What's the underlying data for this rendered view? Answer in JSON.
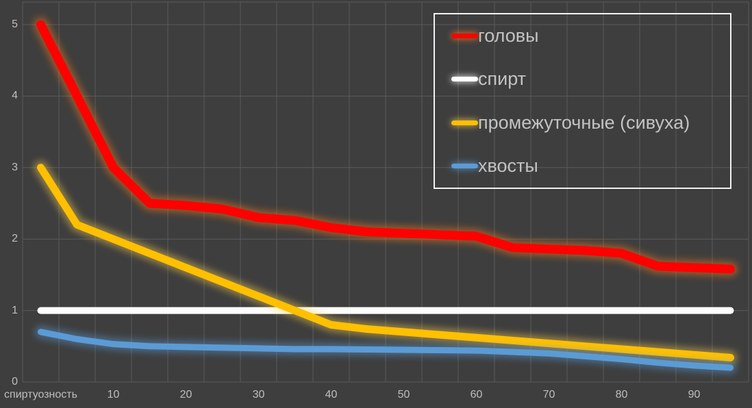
{
  "chart_data": {
    "type": "line",
    "title": "",
    "grid": true,
    "legend_position": "top-right",
    "x_axis": {
      "label": "спиртуозность",
      "categories": [
        0,
        5,
        10,
        15,
        20,
        25,
        30,
        35,
        40,
        45,
        50,
        55,
        60,
        65,
        70,
        75,
        80,
        85,
        90,
        95
      ],
      "tick_labels": [
        "спиртуозность",
        "10",
        "20",
        "30",
        "40",
        "50",
        "60",
        "70",
        "80",
        "90"
      ],
      "tick_every": 2
    },
    "y_axis": {
      "min": 0,
      "max": 5,
      "tick_labels": [
        "0",
        "1",
        "2",
        "3",
        "4",
        "5"
      ]
    },
    "series": [
      {
        "name": "головы",
        "color": "#ff0000",
        "glow_color": "#ff7b1f",
        "line_width": 13,
        "values": [
          5,
          4,
          3,
          2.5,
          2.47,
          2.42,
          2.3,
          2.26,
          2.16,
          2.1,
          2.08,
          2.06,
          2.04,
          1.88,
          1.86,
          1.84,
          1.8,
          1.62,
          1.6,
          1.58
        ]
      },
      {
        "name": "спирт",
        "color": "#ffffff",
        "glow_color": "#ffffff",
        "line_width": 10,
        "values": [
          1,
          1,
          1,
          1,
          1,
          1,
          1,
          1,
          1,
          1,
          1,
          1,
          1,
          1,
          1,
          1,
          1,
          1,
          1,
          1
        ]
      },
      {
        "name": "промежуточные (сивуха)",
        "color": "#ffc000",
        "glow_color": "#ffd24d",
        "line_width": 11,
        "values": [
          3,
          2.2,
          2,
          1.8,
          1.6,
          1.4,
          1.2,
          1,
          0.8,
          0.74,
          0.7,
          0.66,
          0.62,
          0.58,
          0.54,
          0.5,
          0.46,
          0.42,
          0.38,
          0.34
        ]
      },
      {
        "name": "хвосты",
        "color": "#5b9bd5",
        "glow_color": "#5b9bd5",
        "line_width": 9,
        "values": [
          0.7,
          0.6,
          0.53,
          0.5,
          0.49,
          0.48,
          0.47,
          0.46,
          0.46,
          0.455,
          0.45,
          0.445,
          0.44,
          0.42,
          0.4,
          0.36,
          0.32,
          0.27,
          0.23,
          0.2
        ]
      }
    ]
  },
  "colors": {
    "background": "#3e3e3e",
    "gridline": "#5b5b5b",
    "axis_text": "#bfbfbf",
    "legend_text": "#c3c3c3",
    "legend_border": "#f2f2f2"
  }
}
